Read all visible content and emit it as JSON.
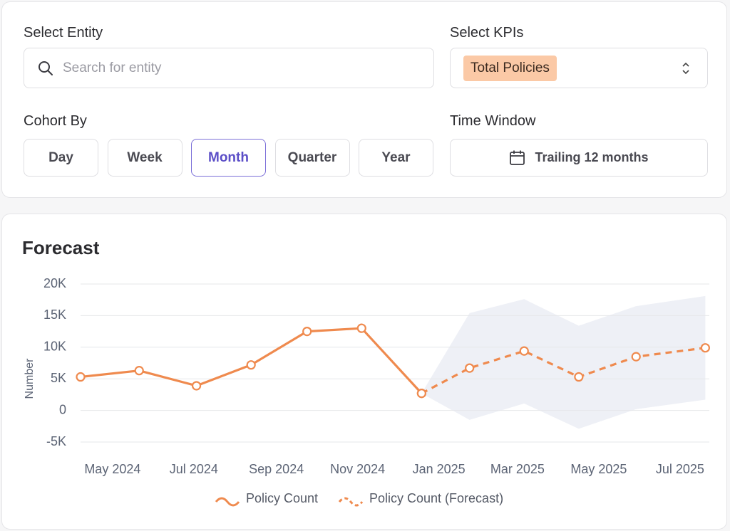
{
  "filters": {
    "entity": {
      "label": "Select Entity",
      "placeholder": "Search for entity"
    },
    "kpis": {
      "label": "Select KPIs",
      "selected": "Total Policies"
    },
    "cohort": {
      "label": "Cohort By",
      "options": [
        "Day",
        "Week",
        "Month",
        "Quarter",
        "Year"
      ],
      "selected": 2
    },
    "time_window": {
      "label": "Time Window",
      "value": "Trailing 12 months"
    }
  },
  "chart_data": {
    "type": "line",
    "title": "Forecast",
    "y_label": "Number",
    "x": [
      "2024-04-07",
      "2024-05-21",
      "2024-07-03",
      "2024-08-13",
      "2024-09-24",
      "2024-11-04",
      "2024-12-19",
      "2025-01-24",
      "2025-03-06",
      "2025-04-16",
      "2025-05-29",
      "2025-07-20"
    ],
    "xlim": [
      "2024-04-07",
      "2025-07-23"
    ],
    "xticks": [
      {
        "value": "2024-05-01",
        "label": "May 2024"
      },
      {
        "value": "2024-07-01",
        "label": "Jul 2024"
      },
      {
        "value": "2024-09-01",
        "label": "Sep 2024"
      },
      {
        "value": "2024-11-01",
        "label": "Nov 2024"
      },
      {
        "value": "2025-01-01",
        "label": "Jan 2025"
      },
      {
        "value": "2025-03-01",
        "label": "Mar 2025"
      },
      {
        "value": "2025-05-01",
        "label": "May 2025"
      },
      {
        "value": "2025-07-01",
        "label": "Jul 2025"
      }
    ],
    "ylim": [
      -5000,
      20000
    ],
    "yticks": [
      {
        "value": -5000,
        "label": "-5K"
      },
      0,
      {
        "value": 5000,
        "label": "5K"
      },
      {
        "value": 10000,
        "label": "10K"
      },
      {
        "value": 15000,
        "label": "15K"
      },
      {
        "value": 20000,
        "label": "20K"
      }
    ],
    "grid": true,
    "series": [
      {
        "name": "Policy Count",
        "color": "#ef8a4e",
        "dashed": false,
        "values": [
          5300,
          6300,
          3900,
          7200,
          12500,
          13000,
          2700,
          null,
          null,
          null,
          null,
          null
        ]
      },
      {
        "name": "Policy Count (Forecast)",
        "color": "#ef8a4e",
        "dashed": true,
        "values": [
          null,
          null,
          null,
          null,
          null,
          null,
          2700,
          6700,
          9400,
          5300,
          8500,
          9900
        ]
      }
    ],
    "band": {
      "color": "#eef0f6",
      "upper": [
        null,
        null,
        null,
        null,
        null,
        null,
        2700,
        15400,
        17600,
        13400,
        16500,
        18100
      ],
      "lower": [
        null,
        null,
        null,
        null,
        null,
        null,
        2700,
        -1500,
        1100,
        -2900,
        200,
        1700
      ]
    }
  }
}
